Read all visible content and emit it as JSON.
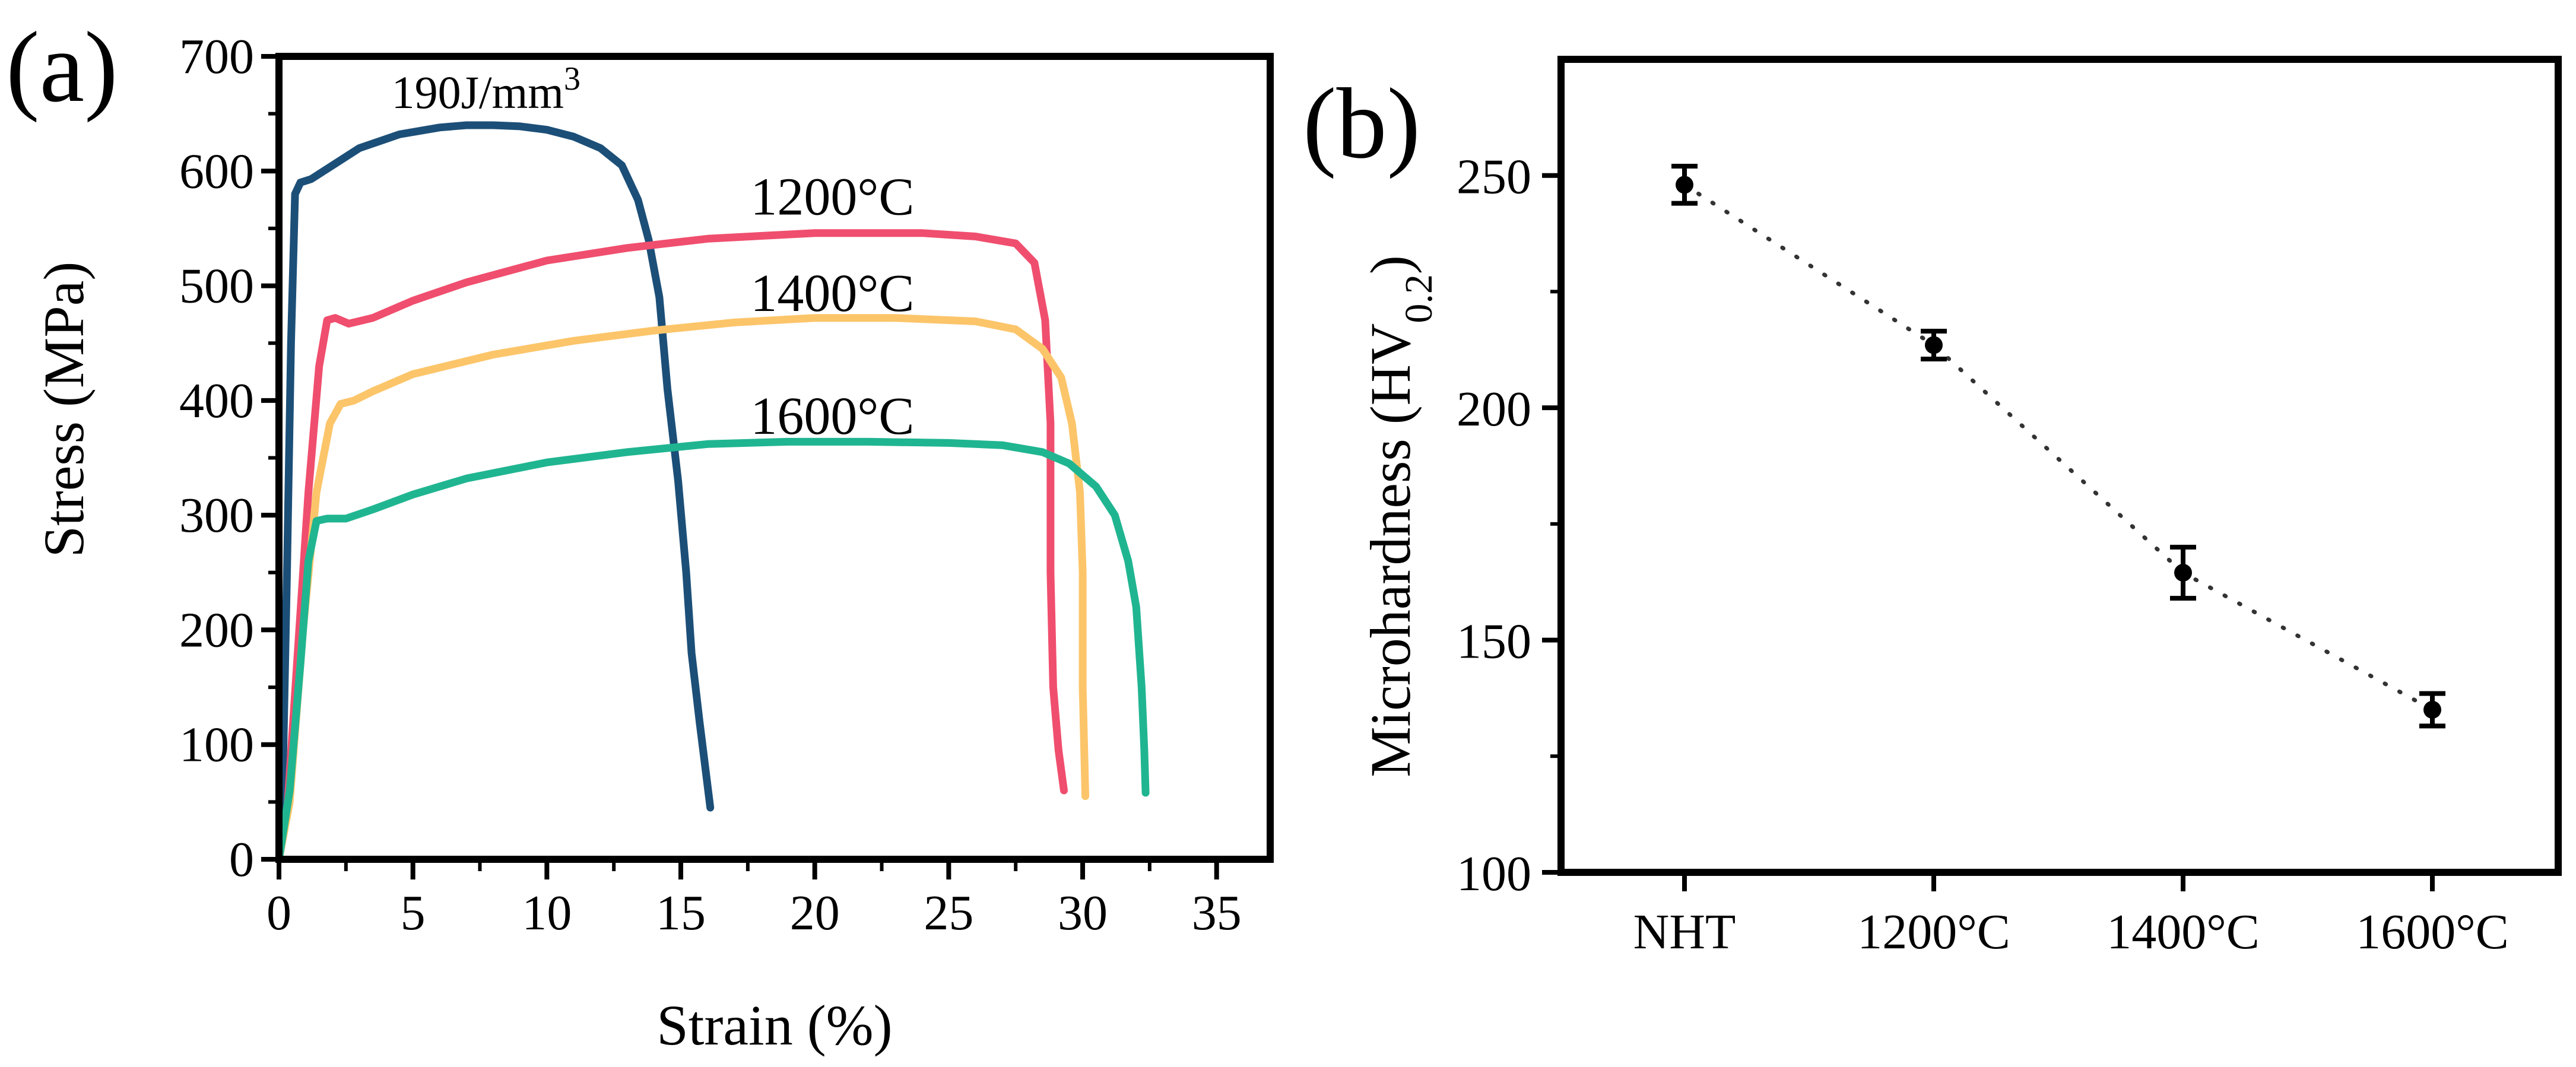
{
  "chart_data": [
    {
      "panel_label": "(a)",
      "type": "line",
      "xlabel": "Strain (%)",
      "ylabel": "Stress (MPa)",
      "xlim": [
        0,
        37
      ],
      "ylim": [
        0,
        700
      ],
      "xticks": [
        0,
        5,
        10,
        15,
        20,
        25,
        30,
        35
      ],
      "yticks": [
        0,
        100,
        200,
        300,
        400,
        500,
        600,
        700
      ],
      "grid": false,
      "series": [
        {
          "name": "190J/mm",
          "name_sup": "3",
          "color": "#1c4f78",
          "points": [
            [
              0,
              0
            ],
            [
              0.1,
              20
            ],
            [
              0.3,
              250
            ],
            [
              0.45,
              450
            ],
            [
              0.6,
              580
            ],
            [
              0.8,
              590
            ],
            [
              1.2,
              593
            ],
            [
              2,
              605
            ],
            [
              3,
              620
            ],
            [
              4.5,
              632
            ],
            [
              6,
              638
            ],
            [
              7,
              640
            ],
            [
              8,
              640
            ],
            [
              9,
              639
            ],
            [
              10,
              636
            ],
            [
              11,
              630
            ],
            [
              12,
              620
            ],
            [
              12.8,
              605
            ],
            [
              13.4,
              575
            ],
            [
              13.8,
              540
            ],
            [
              14.2,
              490
            ],
            [
              14.5,
              410
            ],
            [
              14.9,
              330
            ],
            [
              15.2,
              250
            ],
            [
              15.4,
              180
            ],
            [
              15.7,
              120
            ],
            [
              16.1,
              45
            ]
          ]
        },
        {
          "name": "1200°C",
          "color": "#f04e6e",
          "points": [
            [
              0,
              0
            ],
            [
              0.3,
              40
            ],
            [
              0.7,
              180
            ],
            [
              1.1,
              320
            ],
            [
              1.5,
              430
            ],
            [
              1.8,
              470
            ],
            [
              2.1,
              472
            ],
            [
              2.6,
              467
            ],
            [
              3.5,
              472
            ],
            [
              5,
              487
            ],
            [
              7,
              503
            ],
            [
              10,
              522
            ],
            [
              13,
              533
            ],
            [
              16,
              541
            ],
            [
              20,
              546
            ],
            [
              24,
              546
            ],
            [
              26,
              543
            ],
            [
              27.5,
              537
            ],
            [
              28.2,
              520
            ],
            [
              28.6,
              470
            ],
            [
              28.8,
              380
            ],
            [
              28.8,
              250
            ],
            [
              28.9,
              150
            ],
            [
              29.1,
              95
            ],
            [
              29.3,
              60
            ]
          ]
        },
        {
          "name": "1400°C",
          "color": "#fcc56a",
          "points": [
            [
              0,
              0
            ],
            [
              0.4,
              50
            ],
            [
              0.9,
              200
            ],
            [
              1.4,
              320
            ],
            [
              1.9,
              380
            ],
            [
              2.3,
              397
            ],
            [
              2.8,
              400
            ],
            [
              3.5,
              408
            ],
            [
              5,
              423
            ],
            [
              8,
              440
            ],
            [
              11,
              452
            ],
            [
              14,
              461
            ],
            [
              17,
              468
            ],
            [
              20,
              472
            ],
            [
              23,
              472
            ],
            [
              26,
              469
            ],
            [
              27.5,
              462
            ],
            [
              28.5,
              445
            ],
            [
              29.2,
              420
            ],
            [
              29.6,
              380
            ],
            [
              29.9,
              320
            ],
            [
              30.0,
              250
            ],
            [
              30.0,
              150
            ],
            [
              30.1,
              55
            ]
          ]
        },
        {
          "name": "1600°C",
          "color": "#20b591",
          "points": [
            [
              0,
              0
            ],
            [
              0.4,
              60
            ],
            [
              0.8,
              170
            ],
            [
              1.1,
              260
            ],
            [
              1.4,
              295
            ],
            [
              1.8,
              297
            ],
            [
              2.5,
              297
            ],
            [
              3.5,
              305
            ],
            [
              5,
              318
            ],
            [
              7,
              332
            ],
            [
              10,
              346
            ],
            [
              13,
              355
            ],
            [
              16,
              362
            ],
            [
              19,
              364
            ],
            [
              22,
              364
            ],
            [
              25,
              363
            ],
            [
              27,
              361
            ],
            [
              28.5,
              355
            ],
            [
              29.5,
              345
            ],
            [
              30.5,
              325
            ],
            [
              31.2,
              300
            ],
            [
              31.7,
              260
            ],
            [
              32.0,
              220
            ],
            [
              32.2,
              150
            ],
            [
              32.3,
              95
            ],
            [
              32.35,
              58
            ]
          ]
        }
      ],
      "annotations": [
        {
          "text": "190J/mm",
          "sup": "3",
          "x": 4.2,
          "y": 655,
          "color": "#000000"
        },
        {
          "text": "1200°C",
          "x": 17.6,
          "y": 562,
          "color": "#000000"
        },
        {
          "text": "1400°C",
          "x": 17.6,
          "y": 478,
          "color": "#000000"
        },
        {
          "text": "1600°C",
          "x": 17.6,
          "y": 371,
          "color": "#000000"
        }
      ]
    },
    {
      "panel_label": "(b)",
      "type": "scatter",
      "xlabel": "",
      "ylabel": "Microhardness (HV",
      "ylabel_sub": "0.2",
      "ylabel_close": ")",
      "categories": [
        "NHT",
        "1200°C",
        "1400°C",
        "1600°C"
      ],
      "ylim": [
        100,
        275
      ],
      "yticks": [
        100,
        150,
        200,
        250
      ],
      "grid": false,
      "trendline": "dotted",
      "series": [
        {
          "values": [
            248,
            213.5,
            164.5,
            135
          ],
          "errors": [
            4,
            3,
            5.5,
            3.5
          ],
          "color": "#000000"
        }
      ]
    }
  ]
}
